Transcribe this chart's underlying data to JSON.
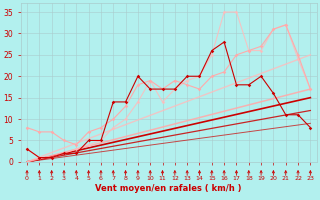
{
  "background_color": "#b2f0ee",
  "grid_color": "#aacccc",
  "xlabel": "Vent moyen/en rafales ( km/h )",
  "xlabel_color": "#cc0000",
  "tick_color": "#cc0000",
  "xlim": [
    -0.5,
    23.5
  ],
  "ylim": [
    0,
    37
  ],
  "yticks": [
    0,
    5,
    10,
    15,
    20,
    25,
    30,
    35
  ],
  "xticks": [
    0,
    1,
    2,
    3,
    4,
    5,
    6,
    7,
    8,
    9,
    10,
    11,
    12,
    13,
    14,
    15,
    16,
    17,
    18,
    19,
    20,
    21,
    22,
    23
  ],
  "series": [
    {
      "x": [
        0,
        1,
        2,
        3,
        4,
        5,
        6,
        7,
        8,
        9,
        10,
        11,
        12,
        13,
        14,
        15,
        16,
        17,
        18,
        19,
        20,
        21,
        22,
        23
      ],
      "y": [
        3,
        1,
        1,
        2,
        2,
        5,
        5,
        14,
        14,
        20,
        17,
        17,
        17,
        20,
        20,
        26,
        28,
        18,
        18,
        20,
        16,
        11,
        11,
        8
      ],
      "color": "#cc0000",
      "linewidth": 0.8,
      "marker": "D",
      "markersize": 1.8,
      "alpha": 1.0,
      "zorder": 5
    },
    {
      "x": [
        0,
        1,
        2,
        3,
        4,
        5,
        6,
        7,
        8,
        9,
        10,
        11,
        12,
        13,
        14,
        15,
        16,
        17,
        18,
        19,
        20,
        21,
        22,
        23
      ],
      "y": [
        8,
        7,
        7,
        5,
        4,
        7,
        8,
        10,
        13,
        18,
        19,
        17,
        19,
        18,
        17,
        20,
        21,
        25,
        26,
        27,
        31,
        32,
        25,
        17
      ],
      "color": "#ffaaaa",
      "linewidth": 0.8,
      "marker": "D",
      "markersize": 1.8,
      "alpha": 1.0,
      "zorder": 4
    },
    {
      "x": [
        0,
        1,
        2,
        3,
        4,
        5,
        6,
        7,
        8,
        9,
        10,
        11,
        12,
        13,
        14,
        15,
        16,
        17,
        18,
        19,
        20,
        21,
        22,
        23
      ],
      "y": [
        3,
        1,
        1,
        2,
        3,
        4,
        5,
        8,
        10,
        14,
        19,
        14,
        17,
        19,
        20,
        25,
        35,
        35,
        26,
        26,
        31,
        32,
        24,
        17
      ],
      "color": "#ffbbbb",
      "linewidth": 0.8,
      "marker": "D",
      "markersize": 1.8,
      "alpha": 0.85,
      "zorder": 3
    },
    {
      "x": [
        0,
        23
      ],
      "y": [
        0,
        15
      ],
      "color": "#cc0000",
      "linewidth": 1.2,
      "marker": null,
      "markersize": 0,
      "alpha": 1.0,
      "zorder": 2
    },
    {
      "x": [
        0,
        23
      ],
      "y": [
        0,
        12
      ],
      "color": "#cc0000",
      "linewidth": 0.9,
      "marker": null,
      "markersize": 0,
      "alpha": 0.85,
      "zorder": 2
    },
    {
      "x": [
        0,
        23
      ],
      "y": [
        0,
        9
      ],
      "color": "#cc0000",
      "linewidth": 0.7,
      "marker": null,
      "markersize": 0,
      "alpha": 0.7,
      "zorder": 2
    },
    {
      "x": [
        0,
        23
      ],
      "y": [
        0,
        17
      ],
      "color": "#ffaaaa",
      "linewidth": 1.1,
      "marker": null,
      "markersize": 0,
      "alpha": 0.9,
      "zorder": 2
    },
    {
      "x": [
        0,
        23
      ],
      "y": [
        0,
        25
      ],
      "color": "#ffbbbb",
      "linewidth": 1.0,
      "marker": null,
      "markersize": 0,
      "alpha": 0.8,
      "zorder": 2
    }
  ],
  "wind_arrows_x": [
    0,
    1,
    2,
    3,
    4,
    5,
    6,
    7,
    8,
    9,
    10,
    11,
    12,
    13,
    14,
    15,
    16,
    17,
    18,
    19,
    20,
    21,
    22,
    23
  ],
  "arrow_color": "#cc0000"
}
